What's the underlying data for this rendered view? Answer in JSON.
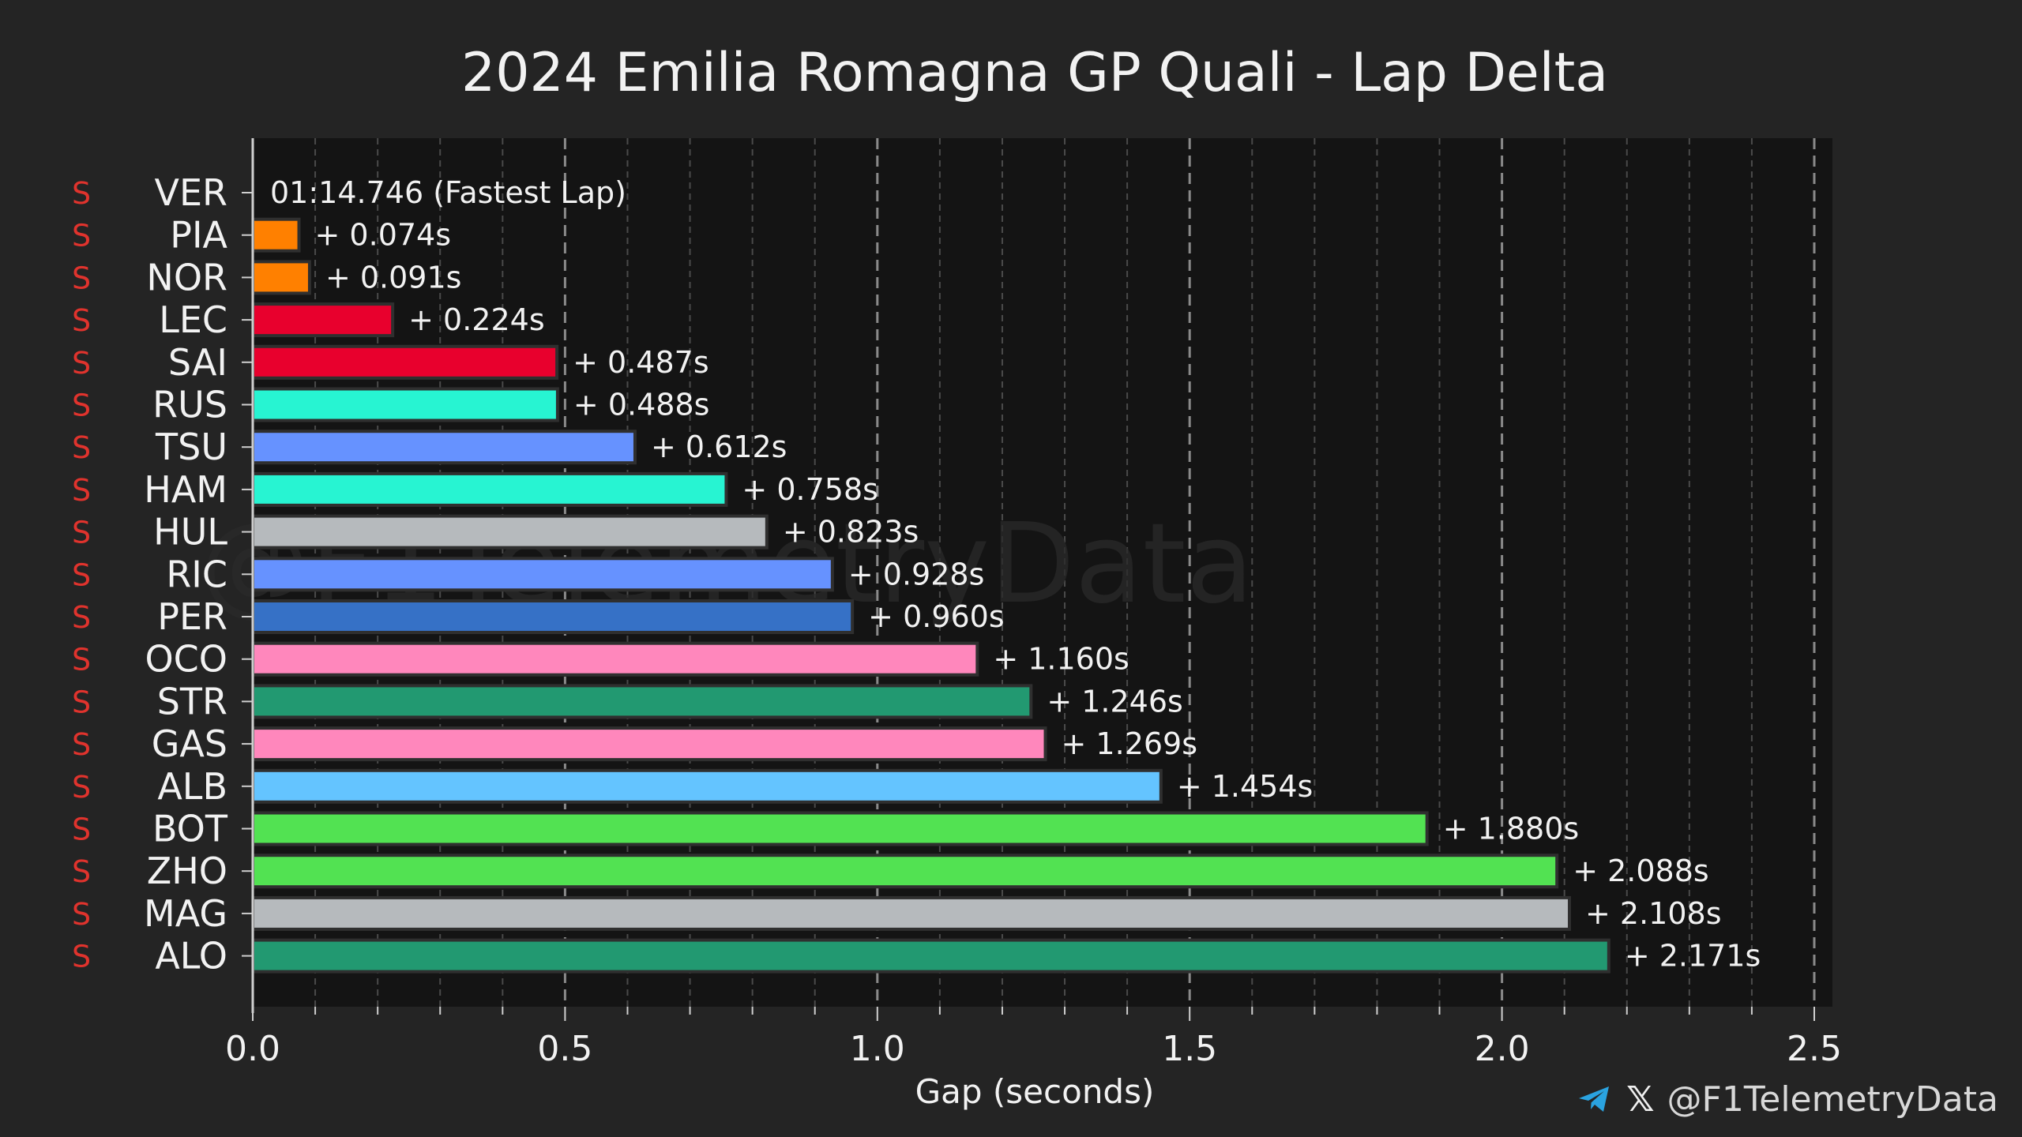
{
  "chart_data": {
    "type": "bar",
    "orientation": "horizontal",
    "title": "2024 Emilia Romagna GP Quali - Lap Delta",
    "xlabel": "Gap (seconds)",
    "ylabel": "",
    "xlim": [
      0,
      2.5
    ],
    "xticks": [
      "0.0",
      "0.5",
      "1.0",
      "1.5",
      "2.0",
      "2.5"
    ],
    "grid": true,
    "watermark": "@F1TelemetryData",
    "fastest_label": "01:14.746 (Fastest Lap)",
    "categories": [
      "VER",
      "PIA",
      "NOR",
      "LEC",
      "SAI",
      "RUS",
      "TSU",
      "HAM",
      "HUL",
      "RIC",
      "PER",
      "OCO",
      "STR",
      "GAS",
      "ALB",
      "BOT",
      "ZHO",
      "MAG",
      "ALO"
    ],
    "tyre": [
      "S",
      "S",
      "S",
      "S",
      "S",
      "S",
      "S",
      "S",
      "S",
      "S",
      "S",
      "S",
      "S",
      "S",
      "S",
      "S",
      "S",
      "S",
      "S"
    ],
    "tyre_color": "#e0332d",
    "values": [
      0.0,
      0.074,
      0.091,
      0.224,
      0.487,
      0.488,
      0.612,
      0.758,
      0.823,
      0.928,
      0.96,
      1.16,
      1.246,
      1.269,
      1.454,
      1.88,
      2.088,
      2.108,
      2.171
    ],
    "labels": [
      "",
      "+ 0.074s",
      "+ 0.091s",
      "+ 0.224s",
      "+ 0.487s",
      "+ 0.488s",
      "+ 0.612s",
      "+ 0.758s",
      "+ 0.823s",
      "+ 0.928s",
      "+ 0.960s",
      "+ 1.160s",
      "+ 1.246s",
      "+ 1.269s",
      "+ 1.454s",
      "+ 1.880s",
      "+ 2.088s",
      "+ 2.108s",
      "+ 2.171s"
    ],
    "colors": [
      "#3671C6",
      "#FF8000",
      "#FF8000",
      "#E8002D",
      "#E8002D",
      "#27F4D2",
      "#6692FF",
      "#27F4D2",
      "#B6BABD",
      "#6692FF",
      "#3671C6",
      "#FF87BC",
      "#229971",
      "#FF87BC",
      "#64C4FF",
      "#52E252",
      "#52E252",
      "#B6BABD",
      "#229971"
    ]
  },
  "footer": {
    "telegram_icon": "telegram-icon",
    "x_icon": "x-icon",
    "x_glyph": "𝕏",
    "handle": "@F1TelemetryData"
  }
}
